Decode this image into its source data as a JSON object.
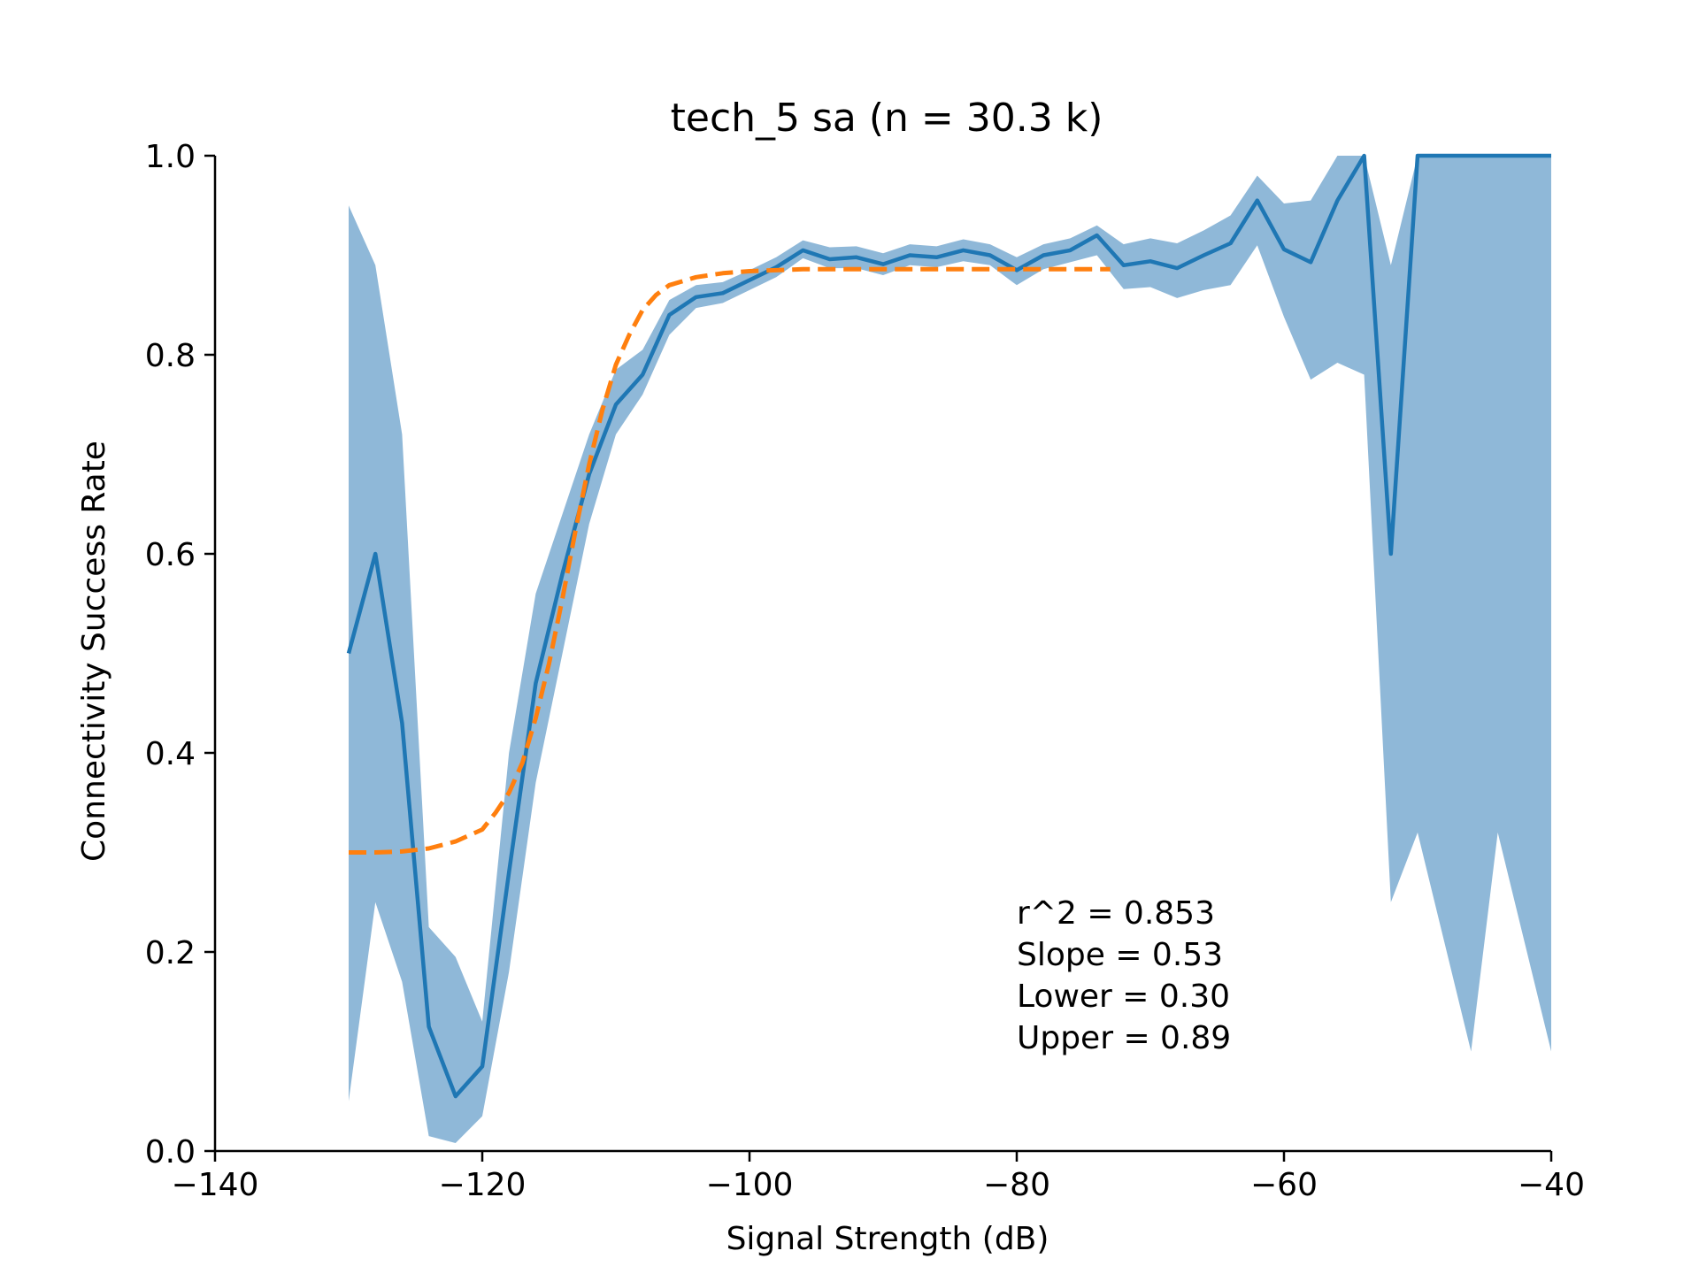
{
  "chart_data": {
    "type": "line",
    "title": "tech_5 sa (n = 30.3 k)",
    "xlabel": "Signal Strength (dB)",
    "ylabel": "Connectivity Success Rate",
    "xlim": [
      -140,
      -40
    ],
    "ylim": [
      0.0,
      1.0
    ],
    "xticks": [
      -140,
      -120,
      -100,
      -80,
      -60,
      -40
    ],
    "xtick_labels": [
      "−140",
      "−120",
      "−100",
      "−80",
      "−60",
      "−40"
    ],
    "yticks": [
      0.0,
      0.2,
      0.4,
      0.6,
      0.8,
      1.0
    ],
    "ytick_labels": [
      "0.0",
      "0.2",
      "0.4",
      "0.6",
      "0.8",
      "1.0"
    ],
    "grid": false,
    "legend": "none",
    "annotations": [
      "r^2 = 0.853",
      "Slope = 0.53",
      "Lower = 0.30",
      "Upper = 0.89"
    ],
    "series": [
      {
        "kind": "line",
        "color": "#1f77b4",
        "x": [
          -130,
          -128,
          -126,
          -124,
          -122,
          -120,
          -118,
          -116,
          -114,
          -112,
          -110,
          -108,
          -106,
          -104,
          -102,
          -100,
          -98,
          -96,
          -94,
          -92,
          -90,
          -88,
          -86,
          -84,
          -82,
          -80,
          -78,
          -76,
          -74,
          -72,
          -70,
          -68,
          -66,
          -64,
          -62,
          -60,
          -58,
          -56,
          -54,
          -52,
          -50,
          -48,
          -46,
          -44,
          -42,
          -40
        ],
        "y": [
          0.5,
          0.6,
          0.43,
          0.125,
          0.055,
          0.085,
          0.28,
          0.47,
          0.58,
          0.68,
          0.75,
          0.78,
          0.84,
          0.858,
          0.862,
          0.875,
          0.888,
          0.905,
          0.896,
          0.898,
          0.891,
          0.9,
          0.898,
          0.905,
          0.9,
          0.885,
          0.9,
          0.905,
          0.92,
          0.89,
          0.894,
          0.887,
          0.9,
          0.912,
          0.955,
          0.906,
          0.893,
          0.955,
          1.0,
          0.6,
          1.0,
          1.0,
          1.0,
          1.0,
          1.0,
          1.0
        ],
        "ci_lower": [
          0.05,
          0.25,
          0.17,
          0.015,
          0.008,
          0.035,
          0.18,
          0.37,
          0.5,
          0.63,
          0.72,
          0.76,
          0.82,
          0.847,
          0.852,
          0.865,
          0.878,
          0.897,
          0.887,
          0.887,
          0.88,
          0.89,
          0.888,
          0.894,
          0.89,
          0.87,
          0.886,
          0.893,
          0.9,
          0.866,
          0.868,
          0.857,
          0.865,
          0.87,
          0.91,
          0.838,
          0.775,
          0.792,
          0.78,
          0.25,
          0.32,
          0.21,
          0.1,
          0.32,
          0.21,
          0.1
        ],
        "ci_upper": [
          0.95,
          0.89,
          0.72,
          0.225,
          0.195,
          0.13,
          0.4,
          0.56,
          0.64,
          0.72,
          0.785,
          0.805,
          0.855,
          0.87,
          0.873,
          0.885,
          0.898,
          0.915,
          0.908,
          0.909,
          0.902,
          0.911,
          0.909,
          0.916,
          0.911,
          0.898,
          0.911,
          0.917,
          0.93,
          0.911,
          0.917,
          0.912,
          0.925,
          0.94,
          0.98,
          0.952,
          0.955,
          1.0,
          1.0,
          0.89,
          1.0,
          1.0,
          1.0,
          1.0,
          1.0,
          1.0
        ],
        "band_color": "#8fb8d8"
      },
      {
        "kind": "fit",
        "color": "#ff7f0e",
        "dashed": true,
        "x": [
          -130,
          -128,
          -126,
          -124,
          -122,
          -120,
          -119,
          -118,
          -117,
          -116,
          -115,
          -114,
          -113,
          -112,
          -111,
          -110,
          -109,
          -108,
          -107,
          -106,
          -104,
          -102,
          -100,
          -98,
          -96,
          -94,
          -92,
          -90,
          -88,
          -86,
          -84,
          -82,
          -80,
          -78,
          -76,
          -74,
          -73
        ],
        "y": [
          0.3,
          0.3,
          0.301,
          0.304,
          0.311,
          0.323,
          0.34,
          0.36,
          0.39,
          0.435,
          0.49,
          0.555,
          0.625,
          0.69,
          0.745,
          0.79,
          0.82,
          0.845,
          0.86,
          0.87,
          0.878,
          0.882,
          0.884,
          0.885,
          0.886,
          0.886,
          0.886,
          0.886,
          0.886,
          0.886,
          0.886,
          0.886,
          0.886,
          0.886,
          0.886,
          0.886,
          0.886
        ]
      }
    ]
  }
}
